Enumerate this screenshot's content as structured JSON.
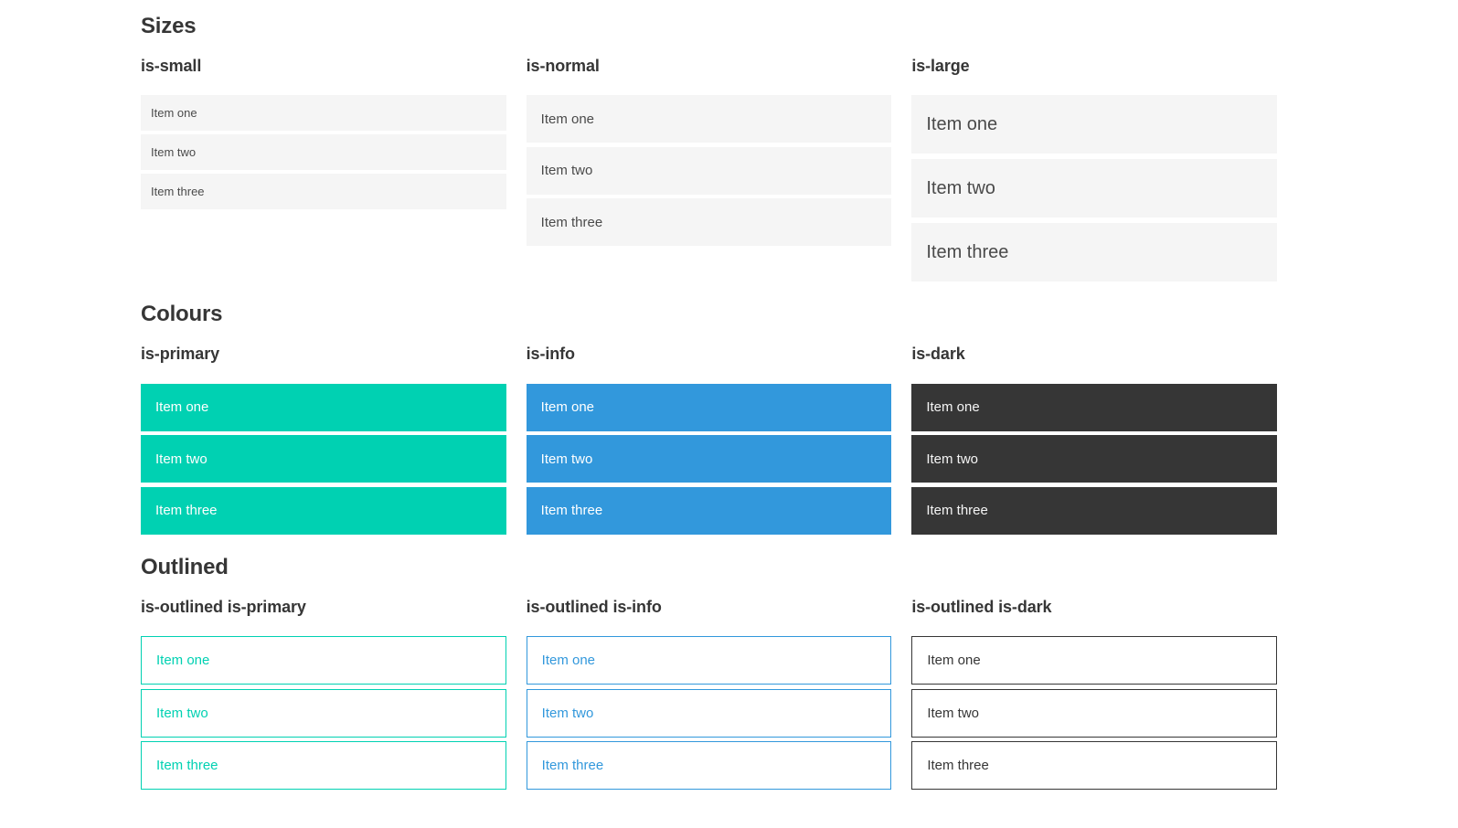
{
  "colors": {
    "primary": "#00d1b2",
    "info": "#3298dc",
    "dark": "#363636",
    "item_background": "#f5f5f5",
    "item_text": "#4a4a4a",
    "heading_text": "#363636",
    "page_background": "#ffffff"
  },
  "sections": [
    {
      "title": "Sizes",
      "groups": [
        {
          "heading": "is-small",
          "items": [
            "Item one",
            "Item two",
            "Item three"
          ]
        },
        {
          "heading": "is-normal",
          "items": [
            "Item one",
            "Item two",
            "Item three"
          ]
        },
        {
          "heading": "is-large",
          "items": [
            "Item one",
            "Item two",
            "Item three"
          ]
        }
      ]
    },
    {
      "title": "Colours",
      "groups": [
        {
          "heading": "is-primary",
          "items": [
            "Item one",
            "Item two",
            "Item three"
          ]
        },
        {
          "heading": "is-info",
          "items": [
            "Item one",
            "Item two",
            "Item three"
          ]
        },
        {
          "heading": "is-dark",
          "items": [
            "Item one",
            "Item two",
            "Item three"
          ]
        }
      ]
    },
    {
      "title": "Outlined",
      "groups": [
        {
          "heading": "is-outlined is-primary",
          "items": [
            "Item one",
            "Item two",
            "Item three"
          ]
        },
        {
          "heading": "is-outlined is-info",
          "items": [
            "Item one",
            "Item two",
            "Item three"
          ]
        },
        {
          "heading": "is-outlined is-dark",
          "items": [
            "Item one",
            "Item two",
            "Item three"
          ]
        }
      ]
    }
  ]
}
